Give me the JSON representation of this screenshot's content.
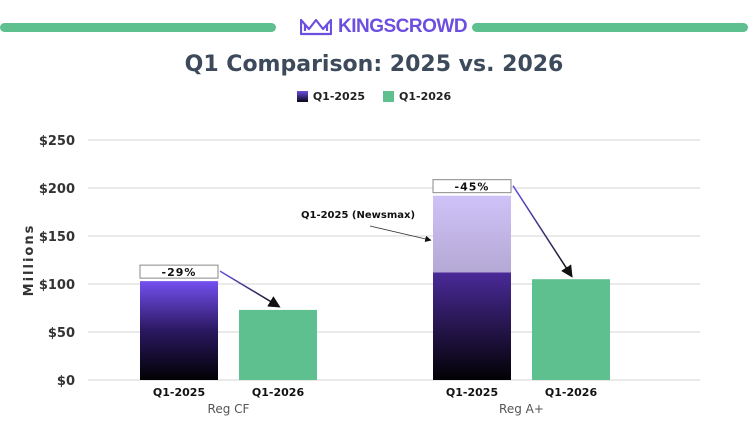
{
  "brand": {
    "name": "KINGSCROWD",
    "icon": "crown-icon",
    "color": "#6c4fe0"
  },
  "chart_data": {
    "type": "bar",
    "title": "Q1 Comparison: 2025 vs. 2026",
    "ylabel": "Millions",
    "xlabel": "",
    "ylim": [
      0,
      250
    ],
    "yticks": [
      "$0",
      "$50",
      "$100",
      "$150",
      "$200",
      "$250"
    ],
    "ytick_values": [
      0,
      50,
      100,
      150,
      200,
      250
    ],
    "grid": true,
    "legend_position": "top",
    "legend": [
      {
        "name": "Q1-2025",
        "color": "#4a2aa0"
      },
      {
        "name": "Q1-2026",
        "color": "#5ebf8f"
      }
    ],
    "groups": [
      {
        "label": "Reg CF",
        "change_label": "-29%",
        "bars": [
          {
            "label": "Q1-2025",
            "value": 103,
            "stack": []
          },
          {
            "label": "Q1-2026",
            "value": 73
          }
        ]
      },
      {
        "label": "Reg A+",
        "change_label": "-45%",
        "bars": [
          {
            "label": "Q1-2025",
            "value": 112,
            "stack": [
              {
                "name": "Q1-2025 (Newsmax)",
                "value": 80
              }
            ]
          },
          {
            "label": "Q1-2026",
            "value": 105
          }
        ]
      }
    ],
    "annotations": [
      "Q1-2025 (Newsmax)"
    ]
  }
}
